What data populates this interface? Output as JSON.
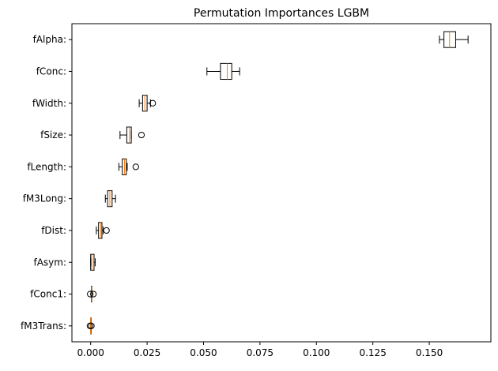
{
  "chart_data": {
    "type": "boxplot",
    "orientation": "horizontal",
    "title": "Permutation Importances LGBM",
    "xlabel": "",
    "ylabel": "",
    "xlim": [
      -0.0083,
      0.1773
    ],
    "xticks": [
      0.0,
      0.025,
      0.05,
      0.075,
      0.1,
      0.125,
      0.15
    ],
    "xtick_labels": [
      "0.000",
      "0.025",
      "0.050",
      "0.075",
      "0.100",
      "0.125",
      "0.150"
    ],
    "grid": false,
    "colors": {
      "box_edge": "#000000",
      "median": "#ff7f0e",
      "flier_edge": "#000000"
    },
    "series": [
      {
        "name": "fAlpha:",
        "whislo": 0.1545,
        "q1": 0.1565,
        "med": 0.159,
        "q3": 0.1617,
        "whishi": 0.1672,
        "fliers": []
      },
      {
        "name": "fConc:",
        "whislo": 0.0515,
        "q1": 0.0575,
        "med": 0.0605,
        "q3": 0.0625,
        "whishi": 0.066,
        "fliers": []
      },
      {
        "name": "fWidth:",
        "whislo": 0.0215,
        "q1": 0.023,
        "med": 0.024,
        "q3": 0.025,
        "whishi": 0.0265,
        "fliers": [
          0.0275
        ]
      },
      {
        "name": "fSize:",
        "whislo": 0.013,
        "q1": 0.016,
        "med": 0.0172,
        "q3": 0.018,
        "whishi": 0.018,
        "fliers": [
          0.0225
        ]
      },
      {
        "name": "fLength:",
        "whislo": 0.0125,
        "q1": 0.014,
        "med": 0.015,
        "q3": 0.0158,
        "whishi": 0.0162,
        "fliers": [
          0.02
        ]
      },
      {
        "name": "fM3Long:",
        "whislo": 0.0065,
        "q1": 0.0075,
        "med": 0.0085,
        "q3": 0.0095,
        "whishi": 0.011,
        "fliers": []
      },
      {
        "name": "fDist:",
        "whislo": 0.0025,
        "q1": 0.0035,
        "med": 0.0045,
        "q3": 0.005,
        "whishi": 0.0055,
        "fliers": [
          0.007
        ]
      },
      {
        "name": "fAsym:",
        "whislo": 0.0,
        "q1": 0.0,
        "med": 0.0005,
        "q3": 0.0015,
        "whishi": 0.002,
        "fliers": []
      },
      {
        "name": "fConc1:",
        "whislo": 0.0002,
        "q1": 0.0003,
        "med": 0.0004,
        "q3": 0.0005,
        "whishi": 0.0006,
        "fliers": [
          -0.0002,
          0.0012
        ]
      },
      {
        "name": "fM3Trans:",
        "whislo": 0.0,
        "q1": 0.0,
        "med": 0.0,
        "q3": 0.0,
        "whishi": 0.0,
        "fliers": [
          -0.0003,
          0.0003
        ]
      }
    ]
  }
}
